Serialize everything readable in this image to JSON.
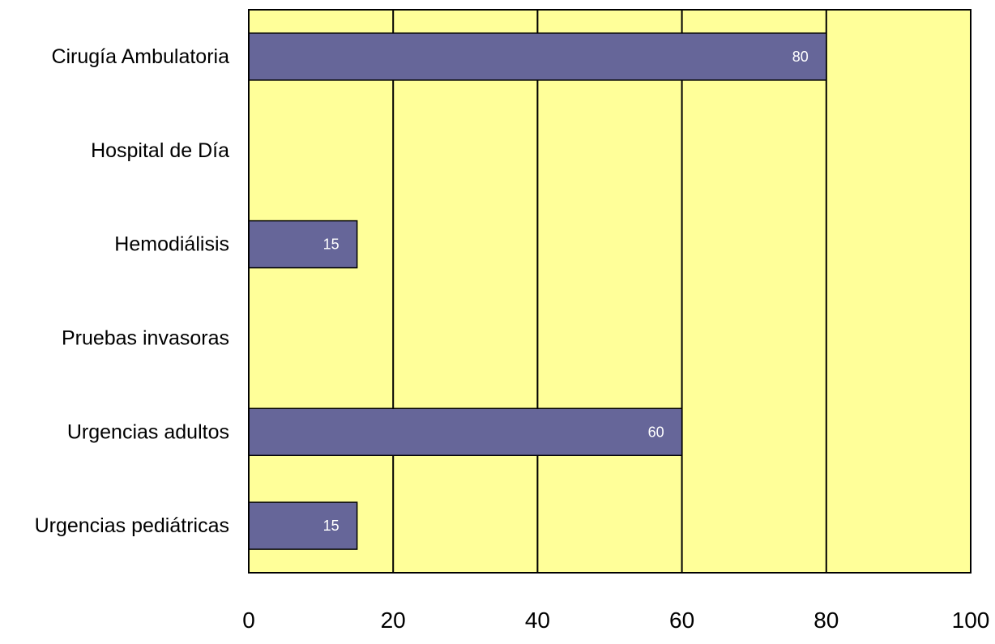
{
  "chart_data": {
    "type": "bar",
    "orientation": "horizontal",
    "categories": [
      "Cirugía Ambulatoria",
      "Hospital de Día",
      "Hemodiálisis",
      "Pruebas invasoras",
      "Urgencias adultos",
      "Urgencias pediátricas"
    ],
    "values": [
      80,
      0,
      15,
      0,
      60,
      15
    ],
    "data_labels": [
      "80",
      "",
      "15",
      "",
      "60",
      "15"
    ],
    "title": "",
    "xlabel": "",
    "ylabel": "",
    "xlim": [
      0,
      100
    ],
    "x_ticks": [
      0,
      20,
      40,
      60,
      80,
      100
    ],
    "x_tick_labels": [
      "0",
      "20",
      "40",
      "60",
      "80",
      "100"
    ],
    "grid": true,
    "legend": "none",
    "colors": {
      "bar": "#666699",
      "plot_background": "#FFFF99",
      "gridline": "#000000",
      "data_label": "#FFFFFF"
    }
  }
}
